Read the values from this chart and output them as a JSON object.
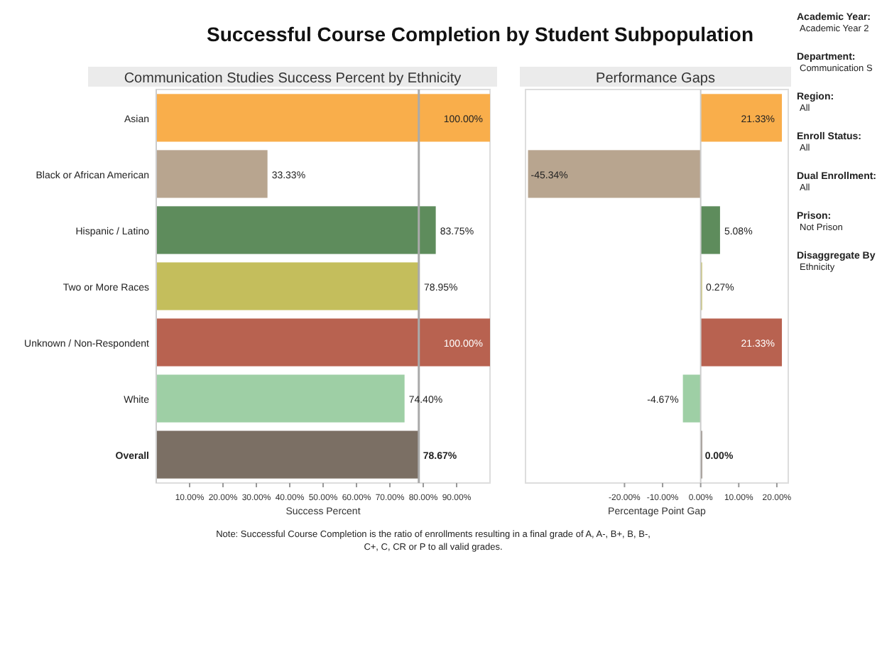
{
  "chart_data": [
    {
      "type": "bar",
      "orientation": "horizontal",
      "title": "Successful Course Completion by Student Subpopulation",
      "subtitle": "Communication Studies Success Percent by Ethnicity",
      "xlabel": "Success Percent",
      "categories": [
        "Asian",
        "Black or African American",
        "Hispanic / Latino",
        "Two or More Races",
        "Unknown / Non-Respondent",
        "White",
        "Overall"
      ],
      "values": [
        100,
        33.33,
        83.75,
        78.95,
        100,
        74.4,
        78.67
      ],
      "colors": [
        "#f9ae4b",
        "#b8a58f",
        "#5e8c5c",
        "#c4be5c",
        "#b86250",
        "#9ecfa5",
        "#7b6f64"
      ],
      "value_labels": [
        "100.00%",
        "33.33%",
        "83.75%",
        "78.95%",
        "100.00%",
        "74.40%",
        "78.67%"
      ],
      "xlim": [
        0,
        100
      ],
      "xticks": [
        {
          "value": 10,
          "label": "10.00%"
        },
        {
          "value": 20,
          "label": "20.00%"
        },
        {
          "value": 30,
          "label": "30.00%"
        },
        {
          "value": 40,
          "label": "40.00%"
        },
        {
          "value": 50,
          "label": "50.00%"
        },
        {
          "value": 60,
          "label": "60.00%"
        },
        {
          "value": 70,
          "label": "70.00%"
        },
        {
          "value": 80,
          "label": "80.00%"
        },
        {
          "value": 90,
          "label": "90.00%"
        }
      ],
      "ref_lines": [
        {
          "axis": "x",
          "value": 78.67,
          "color": "#aaaaaa"
        }
      ],
      "annotations": [
        "Note: Successful Course Completion is the ratio of enrollments resulting in a final grade of A, A-, B+, B, B-, C+, C, CR or P to all valid grades."
      ]
    },
    {
      "type": "bar",
      "orientation": "horizontal",
      "subtitle": "Performance Gaps",
      "xlabel": "Percentage Point Gap",
      "tick_labels": "x",
      "categories": [
        null,
        null,
        null,
        null,
        null,
        null,
        null
      ],
      "values": [
        21.33,
        -45.34,
        5.08,
        0.27,
        21.33,
        -4.67,
        0
      ],
      "colors": [
        "#f9ae4b",
        "#b8a58f",
        "#5e8c5c",
        "#c4be5c",
        "#b86250",
        "#9ecfa5",
        "#7b6f64"
      ],
      "value_labels": [
        "21.33%",
        "-45.34%",
        "5.08%",
        "0.27%",
        "21.33%",
        "-4.67%",
        "0.00%"
      ],
      "xlim": [
        -46,
        23
      ],
      "xticks": [
        {
          "value": -20,
          "label": "-20.00%"
        },
        {
          "value": -10,
          "label": "-10.00%"
        },
        {
          "value": 0,
          "label": "0.00%"
        },
        {
          "value": 10,
          "label": "10.00%"
        },
        {
          "value": 20,
          "label": "20.00%"
        }
      ]
    },
    {
      "type": "other",
      "annotations": [
        "Academic Year:",
        "Academic Year 2",
        "Department:",
        "Communication S",
        "Region:",
        "All",
        "Enroll Status:",
        "All",
        "Dual Enrollment:",
        "All",
        "Prison:",
        "Not Prison",
        "Disaggregate By",
        "Ethnicity"
      ]
    }
  ]
}
